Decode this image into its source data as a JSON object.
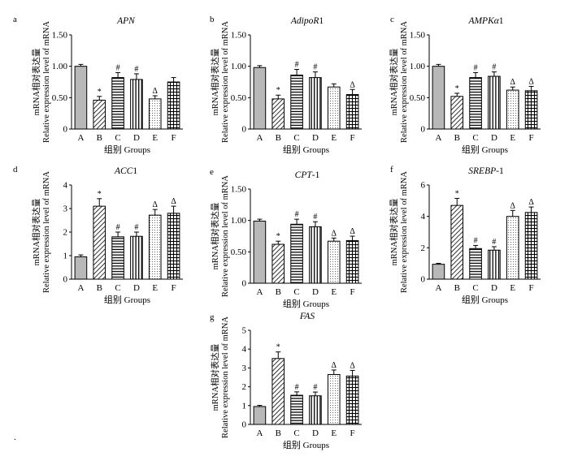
{
  "chart_data": [
    {
      "panel": "a",
      "type": "bar",
      "title": "APN",
      "ylabel": [
        "mRNA相对表达量",
        "Relative expression level of mRNA"
      ],
      "xlabel": "组别 Groups",
      "categories": [
        "A",
        "B",
        "C",
        "D",
        "E",
        "F"
      ],
      "values": [
        1.0,
        0.46,
        0.82,
        0.79,
        0.48,
        0.75
      ],
      "errors": [
        0.03,
        0.06,
        0.08,
        0.09,
        0.05,
        0.07
      ],
      "significance": [
        "",
        "*",
        "#",
        "#",
        "Δ",
        ""
      ],
      "ylim": [
        0,
        1.5
      ],
      "yticks": [
        "0",
        "0.50",
        "1.00",
        "1.50"
      ]
    },
    {
      "panel": "b",
      "type": "bar",
      "title": "AdipoR1",
      "ylabel": [
        "mRNA相对表达量",
        "Relative expression level of mRNA"
      ],
      "xlabel": "组别 Groups",
      "categories": [
        "A",
        "B",
        "C",
        "D",
        "E",
        "F"
      ],
      "values": [
        0.98,
        0.48,
        0.86,
        0.82,
        0.67,
        0.55
      ],
      "errors": [
        0.03,
        0.06,
        0.09,
        0.09,
        0.05,
        0.08
      ],
      "significance": [
        "",
        "*",
        "#",
        "#",
        "",
        "Δ"
      ],
      "ylim": [
        0,
        1.5
      ],
      "yticks": [
        "0",
        "0.50",
        "1.00",
        "1.50"
      ]
    },
    {
      "panel": "c",
      "type": "bar",
      "title": "AMPKα1",
      "ylabel": [
        "mRNA相对表达量",
        "Relative expression level of mRNA"
      ],
      "xlabel": "组别 Groups",
      "categories": [
        "A",
        "B",
        "C",
        "D",
        "E",
        "F"
      ],
      "values": [
        1.0,
        0.52,
        0.82,
        0.84,
        0.62,
        0.61
      ],
      "errors": [
        0.03,
        0.05,
        0.08,
        0.07,
        0.05,
        0.07
      ],
      "significance": [
        "",
        "*",
        "#",
        "#",
        "Δ",
        "Δ"
      ],
      "ylim": [
        0,
        1.5
      ],
      "yticks": [
        "0",
        "0.50",
        "1.00",
        "1.50"
      ]
    },
    {
      "panel": "d",
      "type": "bar",
      "title": "ACC1",
      "ylabel": [
        "mRNA相对表达量",
        "Relative expression level of mRNA"
      ],
      "xlabel": "组别 Groups",
      "categories": [
        "A",
        "B",
        "C",
        "D",
        "E",
        "F"
      ],
      "values": [
        0.95,
        3.1,
        1.8,
        1.82,
        2.72,
        2.8
      ],
      "errors": [
        0.08,
        0.32,
        0.2,
        0.18,
        0.24,
        0.3
      ],
      "significance": [
        "",
        "*",
        "#",
        "#",
        "Δ",
        "Δ"
      ],
      "ylim": [
        0,
        4
      ],
      "yticks": [
        "0",
        "1",
        "2",
        "3",
        "4"
      ]
    },
    {
      "panel": "e",
      "type": "bar",
      "title": "CPT-1",
      "ylabel": [
        "mRNA相对表达量",
        "Relative expression level of mRNA"
      ],
      "xlabel": "组别 Groups",
      "categories": [
        "A",
        "B",
        "C",
        "D",
        "E",
        "F"
      ],
      "values": [
        0.99,
        0.62,
        0.94,
        0.9,
        0.67,
        0.68
      ],
      "errors": [
        0.03,
        0.05,
        0.08,
        0.08,
        0.05,
        0.07
      ],
      "significance": [
        "",
        "*",
        "#",
        "#",
        "Δ",
        "Δ"
      ],
      "ylim": [
        0,
        1.5
      ],
      "yticks": [
        "0",
        "0.50",
        "1.00",
        "1.50"
      ]
    },
    {
      "panel": "f",
      "type": "bar",
      "title": "SREBP-1",
      "ylabel": [
        "mRNA相对表达量",
        "Relative expression level of mRNA"
      ],
      "xlabel": "组别 Groups",
      "categories": [
        "A",
        "B",
        "C",
        "D",
        "E",
        "F"
      ],
      "values": [
        0.95,
        4.7,
        1.95,
        1.85,
        4.0,
        4.25
      ],
      "errors": [
        0.06,
        0.45,
        0.2,
        0.22,
        0.38,
        0.35
      ],
      "significance": [
        "",
        "*",
        "#",
        "#",
        "Δ",
        "Δ"
      ],
      "ylim": [
        0,
        6
      ],
      "yticks": [
        "0",
        "2",
        "4",
        "6"
      ]
    },
    {
      "panel": "g",
      "type": "bar",
      "title": "FAS",
      "ylabel": [
        "mRNA相对表达量",
        "Relative expression level of mRNA"
      ],
      "xlabel": "组别 Groups",
      "categories": [
        "A",
        "B",
        "C",
        "D",
        "E",
        "F"
      ],
      "values": [
        0.95,
        3.5,
        1.55,
        1.52,
        2.65,
        2.57
      ],
      "errors": [
        0.06,
        0.35,
        0.18,
        0.2,
        0.24,
        0.3
      ],
      "significance": [
        "",
        "*",
        "#",
        "#",
        "Δ",
        "Δ"
      ],
      "ylim": [
        0,
        5
      ],
      "yticks": [
        "0",
        "1",
        "2",
        "3",
        "4",
        "5"
      ]
    }
  ],
  "footnote": "."
}
